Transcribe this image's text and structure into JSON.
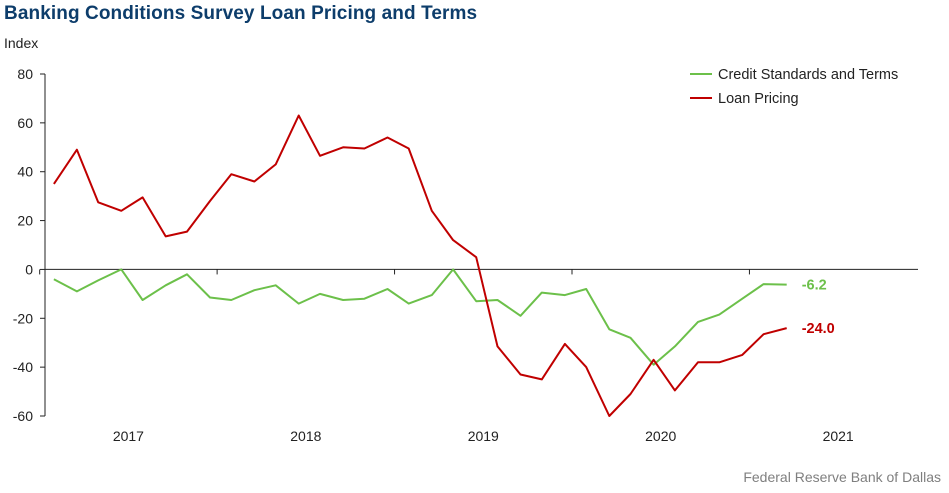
{
  "chart_data": {
    "type": "line",
    "title": "Banking Conditions Survey Loan Pricing and Terms",
    "ylabel": "Index",
    "ylim": [
      -60,
      80
    ],
    "yticks": [
      80,
      60,
      40,
      20,
      0,
      -20,
      -40,
      -60
    ],
    "xlim": [
      2016.53,
      2021.45
    ],
    "xticks": [
      {
        "label": "2017",
        "pos": 2017.0
      },
      {
        "label": "2018",
        "pos": 2018.0
      },
      {
        "label": "2019",
        "pos": 2019.0
      },
      {
        "label": "2020",
        "pos": 2020.0
      },
      {
        "label": "2021",
        "pos": 2021.0
      }
    ],
    "legend_position": "top-right",
    "series": [
      {
        "name": "Credit Standards and Terms",
        "color": "#6cc04a",
        "end_label": "-6.2",
        "x": [
          2016.58,
          2016.71,
          2016.83,
          2016.96,
          2017.08,
          2017.21,
          2017.33,
          2017.46,
          2017.58,
          2017.71,
          2017.83,
          2017.96,
          2018.08,
          2018.21,
          2018.33,
          2018.46,
          2018.58,
          2018.71,
          2018.83,
          2018.96,
          2019.08,
          2019.21,
          2019.33,
          2019.46,
          2019.58,
          2019.71,
          2019.83,
          2019.96,
          2020.08,
          2020.21,
          2020.33,
          2020.46,
          2020.58,
          2020.71
        ],
        "values": [
          -4,
          -9,
          -4.5,
          0,
          -12.5,
          -6.5,
          -2,
          -11.5,
          -12.5,
          -8.5,
          -6.5,
          -14,
          -10,
          -12.5,
          -12,
          -8,
          -14,
          -10.5,
          0,
          -13,
          -12.5,
          -19,
          -9.5,
          -10.5,
          -8,
          -24.5,
          -28,
          -39,
          -31.5,
          -21.5,
          -18.5,
          -12,
          -6,
          -6.2
        ]
      },
      {
        "name": "Loan Pricing",
        "color": "#c00000",
        "end_label": "-24.0",
        "x": [
          2016.58,
          2016.71,
          2016.83,
          2016.96,
          2017.08,
          2017.21,
          2017.33,
          2017.46,
          2017.58,
          2017.71,
          2017.83,
          2017.96,
          2018.08,
          2018.21,
          2018.33,
          2018.46,
          2018.58,
          2018.71,
          2018.83,
          2018.96,
          2019.08,
          2019.21,
          2019.33,
          2019.46,
          2019.58,
          2019.71,
          2019.83,
          2019.96,
          2020.08,
          2020.21,
          2020.33,
          2020.46,
          2020.58,
          2020.71
        ],
        "values": [
          35,
          49,
          27.5,
          24,
          29.5,
          13.5,
          15.5,
          28,
          39,
          36,
          43,
          63,
          46.5,
          50,
          49.5,
          54,
          49.5,
          24,
          12,
          5,
          -31.5,
          -43,
          -45,
          -30.5,
          -40,
          -60,
          -51,
          -37,
          -49.5,
          -38,
          -38,
          -35,
          -26.5,
          -24
        ]
      }
    ],
    "source": "Federal Reserve Bank of Dallas"
  }
}
